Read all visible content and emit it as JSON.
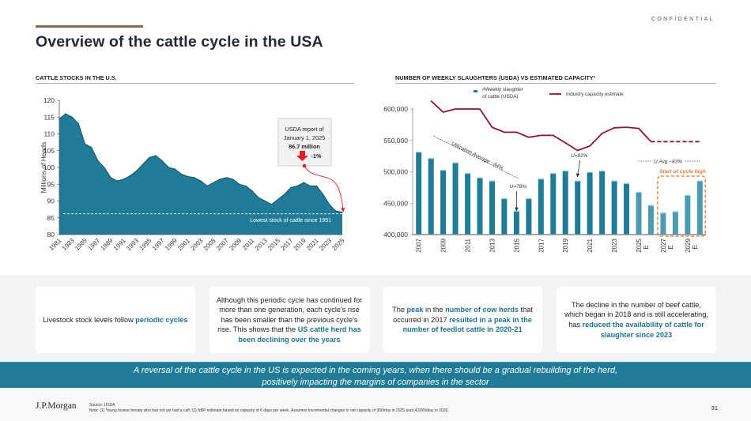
{
  "header": {
    "title": "Overview of the cattle cycle in the USA",
    "confidential": "CONFIDENTIAL"
  },
  "sections": {
    "left_title": "CATTLE STOCKS IN THE U.S.",
    "right_title": "NUMBER OF WEEKLY SLAUGHTERS (USDA) VS ESTIMATED CAPACITY²"
  },
  "colors": {
    "area_fill": "#1f7b96",
    "bar_actual": "#1f7b96",
    "bar_estimate": "#4d9bb2",
    "capacity_line": "#8b1533",
    "highlight_box": "#e07b2e",
    "annotation_red": "#e31e24",
    "accent": "#8c6b4b"
  },
  "chart_data": [
    {
      "type": "area",
      "title": "CATTLE STOCKS IN THE U.S.",
      "xlabel": "",
      "ylabel": "Millions of Heads",
      "ylim": [
        80,
        120
      ],
      "yticks": [
        80,
        85,
        90,
        95,
        100,
        105,
        110,
        115,
        120
      ],
      "x_tick_labels": [
        "1981",
        "1983",
        "1985",
        "1987",
        "1989",
        "1991",
        "1993",
        "1995",
        "1997",
        "1999",
        "2001",
        "2003",
        "2005",
        "2007",
        "2009",
        "2011",
        "2013",
        "2015",
        "2017",
        "2019",
        "2021",
        "2023",
        "2025"
      ],
      "grid": false,
      "x": [
        1981,
        1982,
        1983,
        1984,
        1985,
        1986,
        1987,
        1988,
        1989,
        1990,
        1991,
        1992,
        1993,
        1994,
        1995,
        1996,
        1997,
        1998,
        1999,
        2000,
        2001,
        2002,
        2003,
        2004,
        2005,
        2006,
        2007,
        2008,
        2009,
        2010,
        2011,
        2012,
        2013,
        2014,
        2015,
        2016,
        2017,
        2018,
        2019,
        2020,
        2021,
        2022,
        2023,
        2024,
        2025
      ],
      "values": [
        114.5,
        116,
        115,
        113,
        107,
        106,
        102,
        100,
        97,
        96,
        96.5,
        97.5,
        99,
        101,
        103,
        103.5,
        102,
        100,
        99.5,
        98,
        97.3,
        97,
        96,
        94.5,
        95.5,
        96.5,
        97,
        96.5,
        95,
        94.5,
        93,
        91,
        90,
        89,
        90.5,
        92,
        94,
        94.5,
        95.5,
        94.5,
        94.5,
        92,
        89,
        87,
        86.7
      ],
      "reference_line": {
        "value": 86.2,
        "label": "Lowest stock of cattle since 1951",
        "style": "dashed"
      },
      "callout": {
        "line1": "USDA report of",
        "line2": "January 1, 2025",
        "value": "86.7 million",
        "change": "-1%"
      }
    },
    {
      "type": "bar",
      "title": "NUMBER OF WEEKLY SLAUGHTERS (USDA) VS ESTIMATED CAPACITY²",
      "xlabel": "",
      "ylabel": "",
      "ylim": [
        400000,
        600000
      ],
      "yticks": [
        "400,000",
        "450,000",
        "500,000",
        "550,000",
        "600,000"
      ],
      "categories": [
        "2007",
        "2008",
        "2009",
        "2010",
        "2011",
        "2012",
        "2013",
        "2014",
        "2015",
        "2016",
        "2017",
        "2018",
        "2019",
        "2020",
        "2021",
        "2022",
        "2023",
        "2024",
        "2025E",
        "2026E",
        "2027E",
        "2028E",
        "2029E",
        "2030E"
      ],
      "x_tick_labels": [
        {
          "year": "2007",
          "suffix": ""
        },
        {
          "year": "2009",
          "suffix": ""
        },
        {
          "year": "2011",
          "suffix": ""
        },
        {
          "year": "2013",
          "suffix": ""
        },
        {
          "year": "2015",
          "suffix": ""
        },
        {
          "year": "2017",
          "suffix": ""
        },
        {
          "year": "2019",
          "suffix": ""
        },
        {
          "year": "2021",
          "suffix": ""
        },
        {
          "year": "2023",
          "suffix": ""
        },
        {
          "year": "2025",
          "suffix": "E"
        },
        {
          "year": "2027",
          "suffix": "E"
        },
        {
          "year": "2029",
          "suffix": "E"
        }
      ],
      "grid": false,
      "legend_position": "top",
      "series": [
        {
          "name": "#Weekly slaughter of cattle (USDA)",
          "legend_line1": "#Weekly slaughter",
          "legend_line2": "of cattle (USDA)",
          "type": "bar",
          "values": [
            532000,
            522000,
            503000,
            515000,
            498000,
            491000,
            486000,
            458000,
            438000,
            458000,
            489000,
            498000,
            502000,
            486000,
            500000,
            502000,
            486000,
            482000,
            468000,
            447000,
            435000,
            437000,
            463000,
            486000
          ],
          "estimate_from_index": 18
        },
        {
          "name": "Industry capacity estimate",
          "type": "line",
          "values": [
            null,
            613000,
            595000,
            600000,
            600000,
            600000,
            571000,
            563000,
            563000,
            555000,
            558000,
            558000,
            546000,
            534000,
            541000,
            561000,
            570000,
            571000,
            569000,
            548000,
            548000,
            548000,
            548000,
            548000
          ],
          "dashed_from_index": 19
        }
      ],
      "annotations": [
        {
          "text": "Utilization Average ~84%",
          "style": "dashed-diagonal"
        },
        {
          "text": "U=78%",
          "target": "2015"
        },
        {
          "text": "U=92%",
          "target": "2020"
        },
        {
          "text": "U Avg ~83%",
          "style": "dashed-horizontal"
        },
        {
          "text": "Start of cycle high",
          "target_range": [
            "2027E",
            "2030E"
          ]
        }
      ]
    }
  ],
  "cards": [
    {
      "parts": [
        {
          "t": "Livestock stock levels follow ",
          "hl": false
        },
        {
          "t": "periodic cycles",
          "hl": true
        }
      ]
    },
    {
      "parts": [
        {
          "t": "Although this periodic cycle has continued for more than one generation, each cycle's rise has been smaller than the previous cycle's rise. This shows that the ",
          "hl": false
        },
        {
          "t": "US cattle herd has been declining over the years",
          "hl": true
        }
      ]
    },
    {
      "parts": [
        {
          "t": "The ",
          "hl": false
        },
        {
          "t": "peak",
          "hl": true
        },
        {
          "t": " in the ",
          "hl": false
        },
        {
          "t": "number of cow herds",
          "hl": true
        },
        {
          "t": " that occurred in 2017 ",
          "hl": false
        },
        {
          "t": "resulted in a peak in the number of feedlot cattle in 2020-21",
          "hl": true
        }
      ]
    },
    {
      "parts": [
        {
          "t": "The decline in the number of beef cattle, which began in 2018 and is still accelerating, has ",
          "hl": false
        },
        {
          "t": "reduced the availability of cattle for slaughter since 2023",
          "hl": true
        }
      ]
    }
  ],
  "banner": {
    "line1": "A reversal of the cattle cycle in the US is expected in the coming years, when there should be a gradual rebuilding of the herd,",
    "line2": "positively impacting the margins of companies in the sector"
  },
  "footer": {
    "logo": "J.P.Morgan",
    "source": "Source: USDA",
    "note": "Note: (1) Young bovine female who has not yet had a calf; (2) NBP estimate based on capacity of 6 days per week. Assumes incremental changes in net capacity of 350/day in 2025 and (4,500)/day in 2026.",
    "page_number": "31"
  }
}
